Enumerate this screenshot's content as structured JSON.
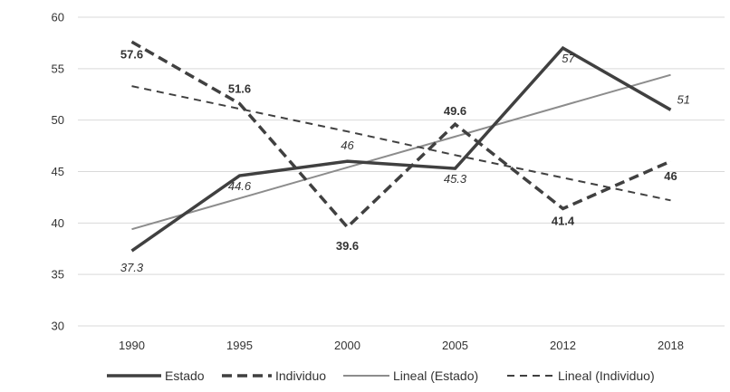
{
  "chart_data": {
    "type": "line",
    "categories": [
      "1990",
      "1995",
      "2000",
      "2005",
      "2012",
      "2018"
    ],
    "ylim": [
      30,
      60
    ],
    "yticks": [
      30,
      35,
      40,
      45,
      50,
      55,
      60
    ],
    "grid": true,
    "legend_position": "bottom",
    "series": [
      {
        "name": "Estado",
        "values": [
          37.3,
          44.6,
          46,
          45.3,
          57,
          51
        ],
        "color": "#404040",
        "style": "solid-thick",
        "labels": [
          "37.3",
          "44.6",
          "46",
          "45.3",
          "57",
          "51"
        ]
      },
      {
        "name": "Individuo",
        "values": [
          57.6,
          51.6,
          39.6,
          49.6,
          41.4,
          46
        ],
        "color": "#404040",
        "style": "dashed-thick",
        "labels": [
          "57.6",
          "51.6",
          "39.6",
          "49.6",
          "41.4",
          "46"
        ]
      },
      {
        "name": "Lineal (Estado)",
        "values": [
          39.4,
          42.4,
          45.4,
          48.4,
          51.4,
          54.4
        ],
        "color": "#8c8c8c",
        "style": "solid-thin"
      },
      {
        "name": "Lineal (Individuo)",
        "values": [
          53.3,
          51.1,
          48.9,
          46.6,
          44.4,
          42.2
        ],
        "color": "#404040",
        "style": "dashed-thin"
      }
    ]
  }
}
